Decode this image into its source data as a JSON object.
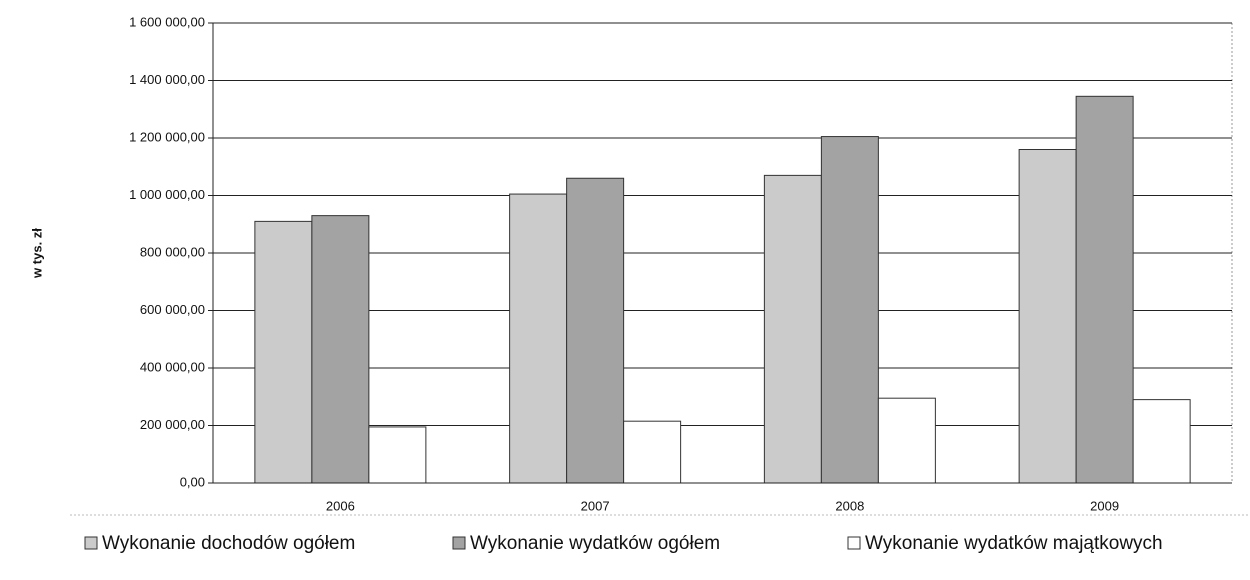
{
  "chart_data": {
    "type": "bar",
    "y_label": "w tys. zł",
    "categories": [
      "2006",
      "2007",
      "2008",
      "2009"
    ],
    "series": [
      {
        "name": "Wykonanie dochodów ogółem",
        "color": "#cbcbcb",
        "values": [
          910000,
          1005000,
          1070000,
          1160000
        ]
      },
      {
        "name": "Wykonanie wydatków ogółem",
        "color": "#a3a3a3",
        "values": [
          930000,
          1060000,
          1205000,
          1345000
        ]
      },
      {
        "name": "Wykonanie wydatków majątkowych",
        "color": "#ffffff",
        "values": [
          195000,
          215000,
          295000,
          290000
        ]
      }
    ],
    "ylim": [
      0,
      1600000
    ],
    "yticks": [
      {
        "value": 0,
        "label": "0,00"
      },
      {
        "value": 200000,
        "label": "200 000,00"
      },
      {
        "value": 400000,
        "label": "400 000,00"
      },
      {
        "value": 600000,
        "label": "600 000,00"
      },
      {
        "value": 800000,
        "label": "800 000,00"
      },
      {
        "value": 1000000,
        "label": "1 000 000,00"
      },
      {
        "value": 1200000,
        "label": "1 200 000,00"
      },
      {
        "value": 1400000,
        "label": "1 400 000,00"
      },
      {
        "value": 1600000,
        "label": "1 600 000,00"
      }
    ],
    "grid": true,
    "legend": "bottom"
  }
}
